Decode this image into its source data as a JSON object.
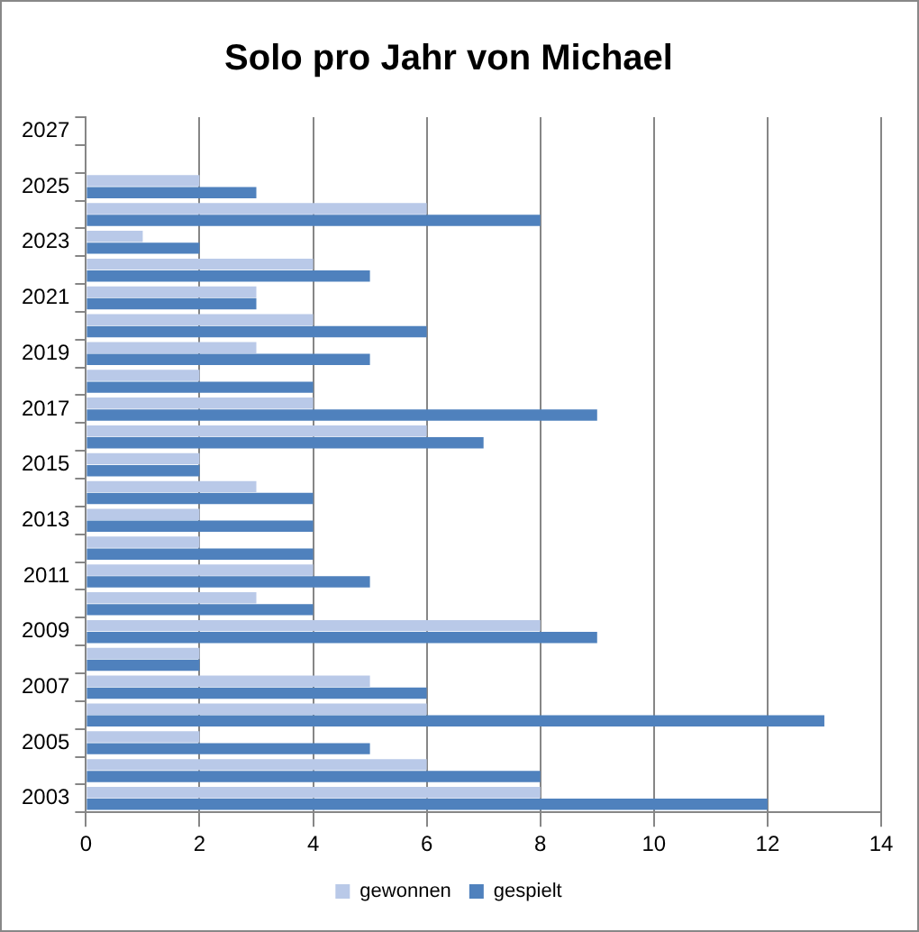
{
  "chart_data": {
    "type": "bar",
    "orientation": "horizontal",
    "title": "Solo pro Jahr von Michael",
    "categories": [
      "2027",
      null,
      "2025",
      null,
      "2023",
      null,
      "2021",
      null,
      "2019",
      null,
      "2017",
      null,
      "2015",
      null,
      "2013",
      null,
      "2011",
      null,
      "2009",
      null,
      "2007",
      null,
      "2005",
      null,
      "2003"
    ],
    "series": [
      {
        "name": "gewonnen",
        "color": "#b9c9e8",
        "values": [
          null,
          null,
          2,
          6,
          1,
          4,
          3,
          4,
          3,
          2,
          4,
          6,
          2,
          3,
          2,
          2,
          4,
          3,
          8,
          2,
          5,
          6,
          2,
          6,
          8
        ]
      },
      {
        "name": "gespielt",
        "color": "#4f81bd",
        "values": [
          null,
          null,
          3,
          8,
          2,
          5,
          3,
          6,
          5,
          4,
          9,
          7,
          2,
          4,
          4,
          4,
          5,
          4,
          9,
          2,
          6,
          13,
          5,
          8,
          12
        ]
      }
    ],
    "xlim": [
      0,
      14
    ],
    "xticks": [
      0,
      2,
      4,
      6,
      8,
      10,
      12,
      14
    ],
    "grid": "x",
    "legend": "bottom"
  }
}
